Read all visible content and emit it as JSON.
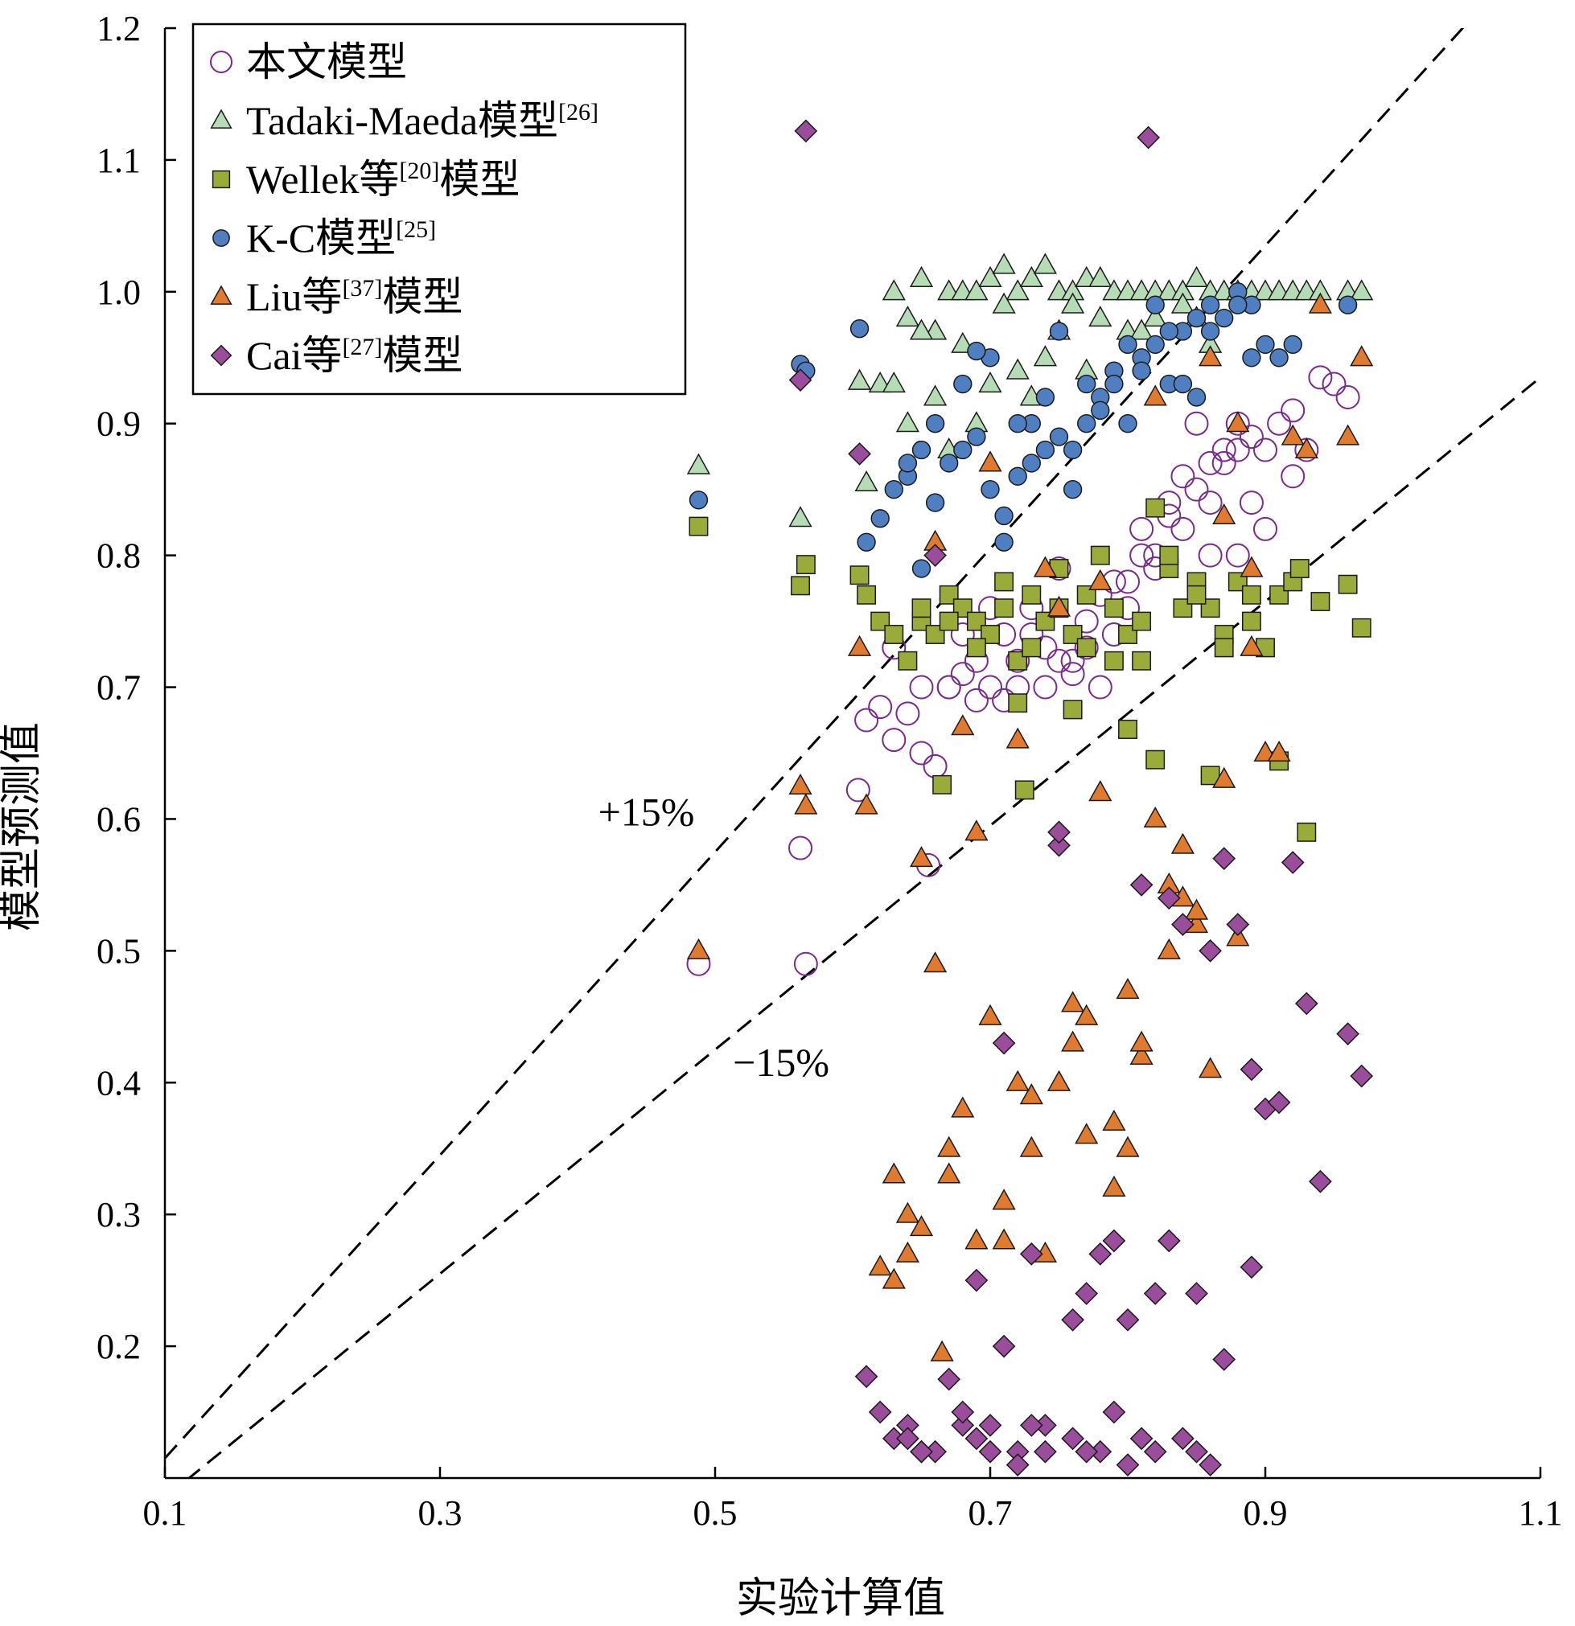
{
  "chart_data": {
    "type": "scatter",
    "title": "",
    "xlabel": "实验计算值",
    "ylabel": "模型预测值",
    "xlim": [
      0.1,
      1.1
    ],
    "ylim": [
      0.1,
      1.2
    ],
    "xticks": [
      "0.1",
      "0.3",
      "0.5",
      "0.7",
      "0.9",
      "1.1"
    ],
    "yticks": [
      "0.2",
      "0.3",
      "0.4",
      "0.5",
      "0.6",
      "0.7",
      "0.8",
      "0.9",
      "1.0",
      "1.1",
      "1.2"
    ],
    "legend_position": "top-left",
    "grid": false,
    "reference_lines": [
      {
        "label": "+15%",
        "slope": 1.15,
        "style": "dashed",
        "label_x": 0.45,
        "label_y": 0.595
      },
      {
        "label": "−15%",
        "slope": 0.85,
        "style": "dashed",
        "label_x": 0.548,
        "label_y": 0.405
      }
    ],
    "series": [
      {
        "name": "本文模型",
        "marker": "circle-open",
        "color": "#7a2a8c",
        "x": [
          0.488,
          0.562,
          0.566,
          0.604,
          0.61,
          0.62,
          0.63,
          0.64,
          0.65,
          0.655,
          0.66,
          0.67,
          0.68,
          0.69,
          0.7,
          0.71,
          0.72,
          0.73,
          0.74,
          0.75,
          0.76,
          0.77,
          0.78,
          0.79,
          0.8,
          0.81,
          0.82,
          0.83,
          0.84,
          0.85,
          0.86,
          0.87,
          0.88,
          0.89,
          0.9,
          0.91,
          0.92,
          0.93,
          0.95,
          0.96,
          0.63,
          0.65,
          0.68,
          0.7,
          0.72,
          0.74,
          0.76,
          0.78,
          0.8,
          0.82,
          0.84,
          0.86,
          0.88,
          0.9,
          0.92,
          0.94,
          0.85,
          0.87,
          0.89,
          0.83,
          0.81,
          0.79,
          0.77,
          0.75,
          0.73,
          0.71,
          0.69,
          0.67,
          0.86,
          0.88
        ],
        "y": [
          0.49,
          0.578,
          0.49,
          0.622,
          0.675,
          0.685,
          0.66,
          0.68,
          0.65,
          0.565,
          0.64,
          0.7,
          0.71,
          0.72,
          0.7,
          0.69,
          0.72,
          0.74,
          0.7,
          0.72,
          0.71,
          0.75,
          0.7,
          0.74,
          0.78,
          0.82,
          0.8,
          0.84,
          0.86,
          0.85,
          0.87,
          0.88,
          0.9,
          0.89,
          0.88,
          0.9,
          0.91,
          0.88,
          0.93,
          0.92,
          0.73,
          0.7,
          0.74,
          0.76,
          0.7,
          0.73,
          0.72,
          0.77,
          0.76,
          0.79,
          0.82,
          0.84,
          0.8,
          0.82,
          0.86,
          0.935,
          0.9,
          0.87,
          0.84,
          0.83,
          0.8,
          0.78,
          0.73,
          0.79,
          0.76,
          0.74,
          0.69,
          0.7,
          0.8,
          0.88
        ]
      },
      {
        "name": "Tadaki-Maeda模型[26]",
        "marker": "triangle",
        "color": "#b5dcb5",
        "x": [
          0.488,
          0.562,
          0.605,
          0.61,
          0.62,
          0.63,
          0.64,
          0.65,
          0.66,
          0.67,
          0.68,
          0.69,
          0.7,
          0.71,
          0.72,
          0.73,
          0.74,
          0.75,
          0.76,
          0.77,
          0.78,
          0.79,
          0.8,
          0.81,
          0.82,
          0.83,
          0.84,
          0.85,
          0.86,
          0.87,
          0.88,
          0.89,
          0.9,
          0.91,
          0.92,
          0.93,
          0.94,
          0.96,
          0.97,
          0.64,
          0.66,
          0.68,
          0.7,
          0.72,
          0.74,
          0.76,
          0.78,
          0.8,
          0.82,
          0.84,
          0.86,
          0.65,
          0.69,
          0.73,
          0.77,
          0.81,
          0.85,
          0.63,
          0.67,
          0.71,
          0.75
        ],
        "y": [
          0.868,
          0.828,
          0.932,
          0.855,
          0.93,
          1.0,
          0.9,
          1.01,
          0.92,
          1.0,
          1.0,
          1.0,
          1.01,
          1.02,
          1.0,
          1.01,
          1.02,
          1.0,
          1.0,
          1.01,
          1.01,
          1.0,
          1.0,
          1.0,
          1.0,
          1.0,
          1.0,
          1.01,
          1.0,
          1.0,
          1.0,
          1.0,
          1.0,
          1.0,
          1.0,
          1.0,
          1.0,
          1.0,
          1.0,
          0.98,
          0.97,
          0.96,
          0.93,
          0.94,
          0.95,
          0.99,
          0.98,
          0.97,
          0.98,
          0.99,
          0.96,
          0.97,
          0.9,
          0.92,
          0.94,
          0.97,
          0.98,
          0.93,
          0.88,
          0.99,
          0.97
        ]
      },
      {
        "name": "Wellek等[20]模型",
        "marker": "square",
        "color": "#9aab3a",
        "x": [
          0.488,
          0.562,
          0.566,
          0.605,
          0.61,
          0.62,
          0.63,
          0.64,
          0.65,
          0.66,
          0.665,
          0.67,
          0.68,
          0.69,
          0.7,
          0.71,
          0.72,
          0.725,
          0.73,
          0.74,
          0.75,
          0.76,
          0.77,
          0.78,
          0.79,
          0.8,
          0.81,
          0.82,
          0.83,
          0.84,
          0.85,
          0.86,
          0.87,
          0.88,
          0.89,
          0.9,
          0.91,
          0.92,
          0.93,
          0.94,
          0.96,
          0.97,
          0.65,
          0.67,
          0.69,
          0.71,
          0.73,
          0.75,
          0.77,
          0.79,
          0.81,
          0.83,
          0.85,
          0.87,
          0.89,
          0.91,
          0.925,
          0.86,
          0.76,
          0.8,
          0.82,
          0.72
        ],
        "y": [
          0.822,
          0.777,
          0.793,
          0.785,
          0.77,
          0.75,
          0.74,
          0.72,
          0.75,
          0.74,
          0.626,
          0.77,
          0.76,
          0.75,
          0.74,
          0.76,
          0.72,
          0.622,
          0.73,
          0.75,
          0.76,
          0.74,
          0.77,
          0.8,
          0.76,
          0.74,
          0.72,
          0.645,
          0.79,
          0.76,
          0.78,
          0.76,
          0.74,
          0.78,
          0.75,
          0.73,
          0.77,
          0.78,
          0.59,
          0.765,
          0.778,
          0.745,
          0.76,
          0.75,
          0.73,
          0.78,
          0.77,
          0.79,
          0.73,
          0.72,
          0.75,
          0.8,
          0.77,
          0.73,
          0.77,
          0.644,
          0.79,
          0.633,
          0.683,
          0.668,
          0.836,
          0.688
        ]
      },
      {
        "name": "K-C模型[25]",
        "marker": "circle",
        "color": "#4f7fc0",
        "x": [
          0.488,
          0.562,
          0.566,
          0.605,
          0.61,
          0.62,
          0.63,
          0.64,
          0.65,
          0.66,
          0.67,
          0.68,
          0.69,
          0.7,
          0.71,
          0.72,
          0.73,
          0.74,
          0.75,
          0.76,
          0.77,
          0.78,
          0.79,
          0.8,
          0.81,
          0.82,
          0.83,
          0.84,
          0.85,
          0.86,
          0.87,
          0.88,
          0.89,
          0.9,
          0.91,
          0.92,
          0.96,
          0.64,
          0.66,
          0.68,
          0.7,
          0.72,
          0.74,
          0.76,
          0.78,
          0.8,
          0.82,
          0.84,
          0.86,
          0.88,
          0.65,
          0.69,
          0.73,
          0.77,
          0.81,
          0.85,
          0.89,
          0.71,
          0.75,
          0.79,
          0.83
        ],
        "y": [
          0.842,
          0.945,
          0.94,
          0.972,
          0.81,
          0.828,
          0.85,
          0.86,
          0.79,
          0.84,
          0.87,
          0.88,
          0.89,
          0.85,
          0.83,
          0.86,
          0.9,
          0.88,
          0.97,
          0.85,
          0.93,
          0.92,
          0.94,
          0.9,
          0.95,
          0.96,
          0.93,
          0.97,
          0.98,
          0.99,
          0.98,
          1.0,
          0.99,
          0.96,
          0.95,
          0.96,
          0.99,
          0.87,
          0.9,
          0.93,
          0.95,
          0.9,
          0.92,
          0.88,
          0.91,
          0.96,
          0.99,
          0.93,
          0.97,
          0.99,
          0.88,
          0.955,
          0.87,
          0.9,
          0.94,
          0.92,
          0.95,
          0.81,
          0.89,
          0.93,
          0.97
        ]
      },
      {
        "name": "Liu等[37]模型",
        "marker": "triangle",
        "color": "#e07a2e",
        "x": [
          0.488,
          0.562,
          0.566,
          0.605,
          0.61,
          0.62,
          0.63,
          0.64,
          0.65,
          0.66,
          0.665,
          0.67,
          0.68,
          0.69,
          0.7,
          0.71,
          0.72,
          0.73,
          0.74,
          0.75,
          0.76,
          0.77,
          0.78,
          0.79,
          0.8,
          0.81,
          0.82,
          0.83,
          0.84,
          0.85,
          0.86,
          0.87,
          0.88,
          0.89,
          0.9,
          0.91,
          0.92,
          0.93,
          0.94,
          0.96,
          0.97,
          0.63,
          0.65,
          0.67,
          0.69,
          0.71,
          0.73,
          0.75,
          0.77,
          0.79,
          0.81,
          0.83,
          0.85,
          0.87,
          0.89,
          0.64,
          0.68,
          0.72,
          0.76,
          0.8,
          0.84,
          0.66,
          0.7,
          0.74,
          0.78,
          0.82,
          0.86,
          0.88
        ],
        "y": [
          0.5,
          0.625,
          0.61,
          0.73,
          0.61,
          0.26,
          0.33,
          0.3,
          0.57,
          0.49,
          0.195,
          0.33,
          0.67,
          0.59,
          0.45,
          0.28,
          0.66,
          0.39,
          0.27,
          0.76,
          0.46,
          0.36,
          0.62,
          0.37,
          0.35,
          0.42,
          0.6,
          0.55,
          0.54,
          0.52,
          0.41,
          0.63,
          0.51,
          0.73,
          0.65,
          0.65,
          0.89,
          0.88,
          0.99,
          0.89,
          0.95,
          0.25,
          0.29,
          0.35,
          0.28,
          0.31,
          0.35,
          0.4,
          0.45,
          0.32,
          0.43,
          0.5,
          0.53,
          0.83,
          0.79,
          0.27,
          0.38,
          0.4,
          0.43,
          0.47,
          0.58,
          0.81,
          0.87,
          0.79,
          0.78,
          0.92,
          0.95,
          0.9
        ]
      },
      {
        "name": "Cai等[27]模型",
        "marker": "diamond",
        "color": "#9a4d9a",
        "x": [
          0.566,
          0.562,
          0.605,
          0.61,
          0.62,
          0.63,
          0.64,
          0.65,
          0.66,
          0.67,
          0.68,
          0.69,
          0.7,
          0.71,
          0.72,
          0.73,
          0.74,
          0.75,
          0.76,
          0.77,
          0.78,
          0.79,
          0.8,
          0.81,
          0.82,
          0.83,
          0.84,
          0.85,
          0.86,
          0.87,
          0.88,
          0.89,
          0.9,
          0.91,
          0.92,
          0.93,
          0.94,
          0.96,
          0.97,
          0.815,
          0.64,
          0.66,
          0.68,
          0.7,
          0.72,
          0.74,
          0.76,
          0.78,
          0.8,
          0.82,
          0.84,
          0.86,
          0.65,
          0.69,
          0.73,
          0.77,
          0.81,
          0.85,
          0.75,
          0.79,
          0.83,
          0.87,
          0.89,
          0.71
        ],
        "y": [
          1.122,
          0.933,
          0.877,
          0.177,
          0.15,
          0.13,
          0.14,
          0.12,
          0.8,
          0.175,
          0.14,
          0.25,
          0.14,
          0.43,
          0.12,
          0.27,
          0.12,
          0.58,
          0.22,
          0.24,
          0.27,
          0.28,
          0.22,
          0.55,
          0.24,
          0.28,
          0.52,
          0.24,
          0.5,
          0.57,
          0.52,
          0.41,
          0.38,
          0.385,
          0.567,
          0.46,
          0.325,
          0.437,
          0.405,
          1.117,
          0.13,
          0.12,
          0.15,
          0.12,
          0.11,
          0.14,
          0.13,
          0.12,
          0.11,
          0.12,
          0.13,
          0.11,
          0.12,
          0.13,
          0.14,
          0.12,
          0.13,
          0.12,
          0.59,
          0.15,
          0.54,
          0.19,
          0.26,
          0.2
        ]
      }
    ]
  }
}
